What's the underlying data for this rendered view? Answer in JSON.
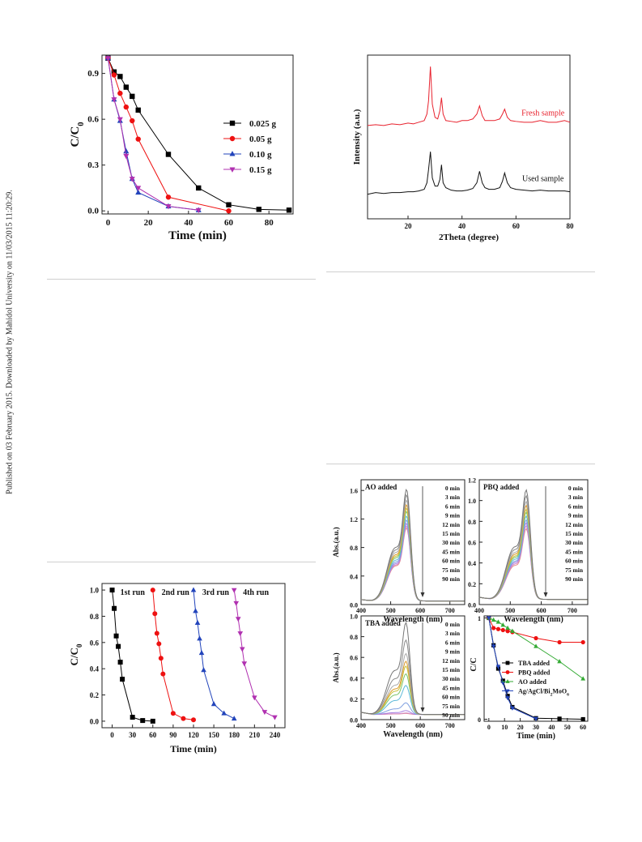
{
  "sidebar_text": "Published on 03 February 2015. Downloaded by Mahidol University on 11/03/2015 11:20:29.",
  "chart_data": [
    {
      "id": "dosage",
      "type": "line",
      "xlabel": "Time (min)",
      "ylabel": "C/C",
      "ylabel_sub": "0",
      "xlim": [
        -3,
        92
      ],
      "ylim": [
        -0.02,
        1.02
      ],
      "xticks": [
        0,
        20,
        40,
        60,
        80
      ],
      "yticks": [
        0.0,
        0.3,
        0.6,
        0.9
      ],
      "legend_position": "right",
      "series": [
        {
          "name": "0.025 g",
          "color": "#000000",
          "marker": "square",
          "x": [
            0,
            3,
            6,
            9,
            12,
            15,
            30,
            45,
            60,
            75,
            90
          ],
          "y": [
            1.0,
            0.91,
            0.88,
            0.81,
            0.75,
            0.66,
            0.37,
            0.15,
            0.04,
            0.01,
            0.005
          ]
        },
        {
          "name": "0.05 g",
          "color": "#ee1111",
          "marker": "circle",
          "x": [
            0,
            3,
            6,
            9,
            12,
            15,
            30,
            60
          ],
          "y": [
            1.0,
            0.89,
            0.77,
            0.68,
            0.59,
            0.47,
            0.09,
            0.0
          ]
        },
        {
          "name": "0.10 g",
          "color": "#2244bb",
          "marker": "triangle",
          "x": [
            0,
            3,
            6,
            9,
            12,
            15,
            30,
            45
          ],
          "y": [
            1.0,
            0.73,
            0.59,
            0.39,
            0.21,
            0.12,
            0.03,
            0.005
          ]
        },
        {
          "name": "0.15 g",
          "color": "#b030b0",
          "marker": "tri-down",
          "x": [
            0,
            3,
            6,
            9,
            12,
            15,
            30,
            45
          ],
          "y": [
            1.0,
            0.73,
            0.6,
            0.36,
            0.21,
            0.15,
            0.03,
            0.005
          ]
        }
      ]
    },
    {
      "id": "xrd",
      "type": "line",
      "xlabel": "2Theta (degree)",
      "ylabel": "Intensity (a.u.)",
      "xlim": [
        5,
        80
      ],
      "ylim": [
        0,
        1
      ],
      "xticks": [
        20,
        40,
        60,
        80
      ],
      "yticks": [],
      "series": [
        {
          "name": "Fresh sample",
          "color": "#e8222e",
          "x": [
            5,
            8,
            11,
            14,
            17,
            20,
            22,
            24,
            26,
            27,
            27.6,
            28.3,
            29,
            30,
            31,
            31.8,
            32.4,
            33,
            34,
            36,
            38,
            40,
            42,
            44,
            45.5,
            46.5,
            47.5,
            48.5,
            50,
            52,
            54,
            55,
            55.8,
            56.8,
            58,
            60,
            63,
            66,
            69,
            72,
            75,
            78,
            80
          ],
          "y": [
            0.57,
            0.575,
            0.57,
            0.58,
            0.575,
            0.585,
            0.58,
            0.59,
            0.6,
            0.64,
            0.72,
            0.93,
            0.7,
            0.62,
            0.61,
            0.66,
            0.74,
            0.64,
            0.6,
            0.595,
            0.59,
            0.6,
            0.6,
            0.61,
            0.64,
            0.69,
            0.63,
            0.6,
            0.6,
            0.6,
            0.61,
            0.64,
            0.67,
            0.62,
            0.6,
            0.595,
            0.59,
            0.59,
            0.6,
            0.59,
            0.59,
            0.6,
            0.59
          ]
        },
        {
          "name": "Used sample",
          "color": "#111111",
          "x": [
            5,
            8,
            11,
            14,
            17,
            20,
            22,
            24,
            26,
            27,
            27.6,
            28.3,
            29,
            30,
            31,
            31.8,
            32.4,
            33,
            34,
            36,
            38,
            40,
            42,
            44,
            45.5,
            46.5,
            47.5,
            48.5,
            50,
            52,
            54,
            55,
            55.8,
            56.8,
            58,
            60,
            63,
            66,
            69,
            72,
            75,
            78,
            80
          ],
          "y": [
            0.15,
            0.16,
            0.155,
            0.16,
            0.16,
            0.165,
            0.165,
            0.17,
            0.18,
            0.22,
            0.3,
            0.41,
            0.25,
            0.2,
            0.2,
            0.24,
            0.33,
            0.22,
            0.19,
            0.175,
            0.17,
            0.17,
            0.175,
            0.185,
            0.22,
            0.29,
            0.22,
            0.19,
            0.18,
            0.18,
            0.19,
            0.23,
            0.28,
            0.22,
            0.19,
            0.18,
            0.175,
            0.17,
            0.175,
            0.17,
            0.17,
            0.17,
            0.165
          ]
        }
      ],
      "annotations": [
        {
          "text": "Fresh sample",
          "x": 70,
          "y": 0.63,
          "color": "#e8222e"
        },
        {
          "text": "Used sample",
          "x": 70,
          "y": 0.23,
          "color": "#111111"
        }
      ]
    },
    {
      "id": "reuse",
      "type": "line",
      "xlabel": "Time (min)",
      "ylabel": "C/C",
      "ylabel_sub": "0",
      "xlim": [
        -15,
        255
      ],
      "ylim": [
        -0.05,
        1.05
      ],
      "xticks": [
        0,
        30,
        60,
        90,
        120,
        150,
        180,
        210,
        240
      ],
      "yticks": [
        0.0,
        0.2,
        0.4,
        0.6,
        0.8,
        1.0
      ],
      "series": [
        {
          "name": "1st run",
          "color": "#000000",
          "marker": "square",
          "x": [
            0,
            3,
            6,
            9,
            12,
            15,
            30,
            45,
            60
          ],
          "y": [
            1.0,
            0.86,
            0.65,
            0.57,
            0.45,
            0.32,
            0.03,
            0.005,
            0.0
          ]
        },
        {
          "name": "2nd run",
          "color": "#ee1111",
          "marker": "circle",
          "x": [
            60,
            63,
            66,
            69,
            72,
            75,
            90,
            105,
            120
          ],
          "y": [
            1.0,
            0.82,
            0.67,
            0.59,
            0.48,
            0.36,
            0.06,
            0.02,
            0.01
          ]
        },
        {
          "name": "3rd run",
          "color": "#2244bb",
          "marker": "triangle",
          "x": [
            120,
            123,
            126,
            129,
            132,
            135,
            150,
            165,
            180
          ],
          "y": [
            1.0,
            0.84,
            0.75,
            0.63,
            0.52,
            0.39,
            0.13,
            0.06,
            0.02
          ]
        },
        {
          "name": "4th run",
          "color": "#b030b0",
          "marker": "tri-down",
          "x": [
            180,
            183,
            186,
            189,
            192,
            195,
            210,
            225,
            240
          ],
          "y": [
            1.0,
            0.9,
            0.78,
            0.67,
            0.55,
            0.44,
            0.18,
            0.07,
            0.03
          ]
        }
      ],
      "annotations": [
        {
          "text": "1st run",
          "x": 12,
          "y": 0.965
        },
        {
          "text": "2nd run",
          "x": 73,
          "y": 0.965
        },
        {
          "text": "3rd run",
          "x": 133,
          "y": 0.965
        },
        {
          "text": "4th run",
          "x": 193,
          "y": 0.965
        }
      ]
    },
    {
      "id": "ao",
      "type": "line",
      "panel_label": "AO added",
      "xlabel": "Wavelength (nm)",
      "ylabel": "Abs.(a.u.)",
      "xlim": [
        400,
        750
      ],
      "ylim": [
        0,
        1.75
      ],
      "xticks": [
        400,
        500,
        600,
        700
      ],
      "yticks": [
        0.0,
        0.4,
        0.8,
        1.2,
        1.6
      ],
      "legend_position": "right",
      "legend": [
        "0 min",
        "3 min",
        "6 min",
        "9 min",
        "12 min",
        "15 min",
        "30 min",
        "45 min",
        "60 min",
        "75 min",
        "90 min"
      ],
      "peak_x": 555,
      "peaks": [
        1.68,
        1.6,
        1.52,
        1.45,
        1.4,
        1.35,
        1.28,
        1.22,
        1.17,
        1.13,
        1.1
      ]
    },
    {
      "id": "pbq",
      "type": "line",
      "panel_label": "PBQ added",
      "xlabel": "Wavelength (nm)",
      "xlim": [
        400,
        750
      ],
      "ylim": [
        0,
        1.2
      ],
      "xticks": [
        400,
        500,
        600,
        700
      ],
      "yticks": [
        0.0,
        0.2,
        0.4,
        0.6,
        0.8,
        1.0,
        1.2
      ],
      "legend_position": "right",
      "legend": [
        "0 min",
        "3 min",
        "6 min",
        "9 min",
        "12 min",
        "15 min",
        "30 min",
        "45 min",
        "60 min",
        "75 min",
        "90 min"
      ],
      "peak_x": 553,
      "peaks": [
        1.13,
        1.07,
        1.01,
        0.97,
        0.93,
        0.9,
        0.86,
        0.82,
        0.79,
        0.76,
        0.73
      ]
    },
    {
      "id": "tba",
      "type": "line",
      "panel_label": "TBA added",
      "xlabel": "Wavelength (nm)",
      "ylabel": "Abs.(a.u.)",
      "xlim": [
        400,
        750
      ],
      "ylim": [
        0,
        1.0
      ],
      "xticks": [
        400,
        500,
        600,
        700
      ],
      "yticks": [
        0.0,
        0.2,
        0.4,
        0.6,
        0.8,
        1.0
      ],
      "legend_position": "right",
      "legend": [
        "0 min",
        "3 min",
        "6 min",
        "9 min",
        "12 min",
        "15 min",
        "30 min",
        "45 min",
        "60 min",
        "75 min",
        "90 min"
      ],
      "peak_x": 553,
      "peaks": [
        0.95,
        0.77,
        0.63,
        0.55,
        0.5,
        0.42,
        0.3,
        0.12,
        0.04,
        0.015,
        0.01
      ]
    },
    {
      "id": "scavenger",
      "type": "line",
      "ylabel": "C/C",
      "xlabel": "Time (min)",
      "xlim": [
        -3,
        63
      ],
      "ylim": [
        -0.02,
        1.02
      ],
      "xticks": [
        0,
        10,
        20,
        30,
        40,
        50,
        60
      ],
      "yticks": [
        0,
        1
      ],
      "legend_position": "bottom-left",
      "series": [
        {
          "name": "TBA added",
          "color": "#000000",
          "marker": "square",
          "x": [
            0,
            3,
            6,
            9,
            12,
            15,
            30,
            45,
            60
          ],
          "y": [
            1.0,
            0.73,
            0.5,
            0.38,
            0.23,
            0.12,
            0.01,
            0.005,
            0.0
          ]
        },
        {
          "name": "PBQ added",
          "color": "#ee1111",
          "marker": "circle",
          "x": [
            0,
            3,
            6,
            9,
            12,
            15,
            30,
            45,
            60
          ],
          "y": [
            1.0,
            0.9,
            0.89,
            0.88,
            0.87,
            0.86,
            0.8,
            0.76,
            0.76
          ]
        },
        {
          "name": "AO added",
          "color": "#33aa33",
          "marker": "triangle",
          "x": [
            0,
            3,
            6,
            9,
            12,
            15,
            30,
            45,
            60
          ],
          "y": [
            1.0,
            0.98,
            0.96,
            0.93,
            0.9,
            0.87,
            0.72,
            0.57,
            0.4
          ]
        },
        {
          "name": "Ag/AgCl/Bi",
          "name_sub": "2",
          "name_tail": "MoO",
          "name_sub2": "6",
          "color": "#2244bb",
          "marker": "tri-down",
          "x": [
            0,
            3,
            6,
            9,
            12,
            15,
            30
          ],
          "y": [
            1.0,
            0.72,
            0.52,
            0.36,
            0.21,
            0.11,
            0.005
          ]
        }
      ]
    }
  ],
  "spectrum_colors": [
    "#777777",
    "#8a8a8a",
    "#aaaaaa",
    "#dd9a2a",
    "#c9c23a",
    "#7cc46a",
    "#5bb8d8",
    "#7f9fe0",
    "#a57ee0",
    "#d08ac8",
    "#e48c8c"
  ]
}
